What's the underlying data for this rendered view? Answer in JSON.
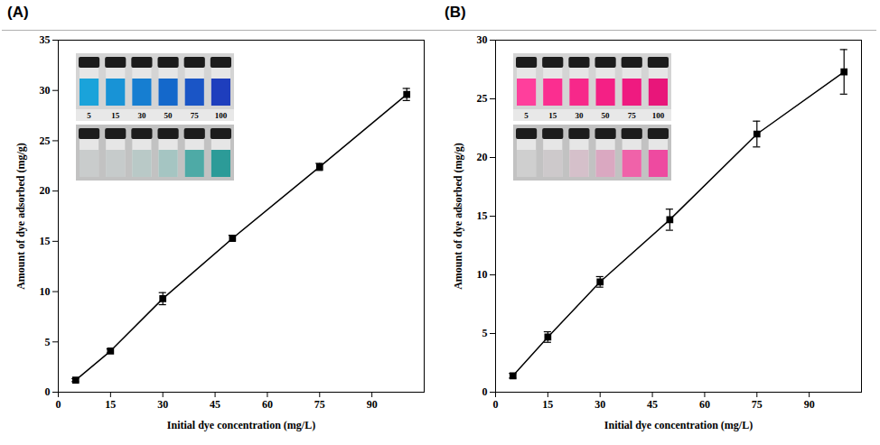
{
  "chart_data": [
    {
      "type": "line",
      "panel_label": "(A)",
      "x_label": "Initial dye concentration (mg/L)",
      "y_label": "Amount of dye adsorbed (mg/g)",
      "x": [
        5,
        15,
        30,
        50,
        75,
        100
      ],
      "values": [
        1.2,
        4.1,
        9.3,
        15.3,
        22.4,
        29.6
      ],
      "errors": [
        0.15,
        0.2,
        0.6,
        0.3,
        0.35,
        0.6
      ],
      "color": "#000000",
      "marker": "square",
      "xlim": [
        0,
        105
      ],
      "xticks": [
        0,
        15,
        30,
        45,
        60,
        75,
        90
      ],
      "ylim": [
        0,
        35
      ],
      "yticks": [
        0,
        5,
        10,
        15,
        20,
        25,
        30,
        35
      ],
      "inset": {
        "labels": [
          5,
          15,
          30,
          50,
          75,
          100
        ],
        "rows": [
          {
            "colors": [
              "#1aa3da",
              "#1893d6",
              "#167ed1",
              "#1468cb",
              "#1a55c6",
              "#1e3ebd"
            ]
          },
          {
            "colors": [
              "#c9cccc",
              "#c6cbcb",
              "#b9c9c7",
              "#a5c5c2",
              "#4eaaa6",
              "#2c9b98"
            ]
          }
        ]
      }
    },
    {
      "type": "line",
      "panel_label": "(B)",
      "x_label": "Initial dye concentration (mg/L)",
      "y_label": "Amount of dye adsorbed (mg/g)",
      "x": [
        5,
        15,
        30,
        50,
        75,
        100
      ],
      "values": [
        1.4,
        4.7,
        9.4,
        14.7,
        22.0,
        27.3
      ],
      "errors": [
        0.2,
        0.45,
        0.45,
        0.9,
        1.1,
        1.9
      ],
      "color": "#000000",
      "marker": "square",
      "xlim": [
        0,
        105
      ],
      "xticks": [
        0,
        15,
        30,
        45,
        60,
        75,
        90
      ],
      "ylim": [
        0,
        30
      ],
      "yticks": [
        0,
        5,
        10,
        15,
        20,
        25,
        30
      ],
      "inset": {
        "labels": [
          5,
          15,
          30,
          50,
          75,
          100
        ],
        "rows": [
          {
            "colors": [
              "#ff3f9c",
              "#fb2e90",
              "#f7288a",
              "#f42085",
              "#ef1a80",
              "#e8167a"
            ]
          },
          {
            "colors": [
              "#cfcfcf",
              "#cdc9cb",
              "#d5c0ca",
              "#daa8c1",
              "#f062a9",
              "#ee4aa0"
            ]
          }
        ]
      }
    }
  ]
}
